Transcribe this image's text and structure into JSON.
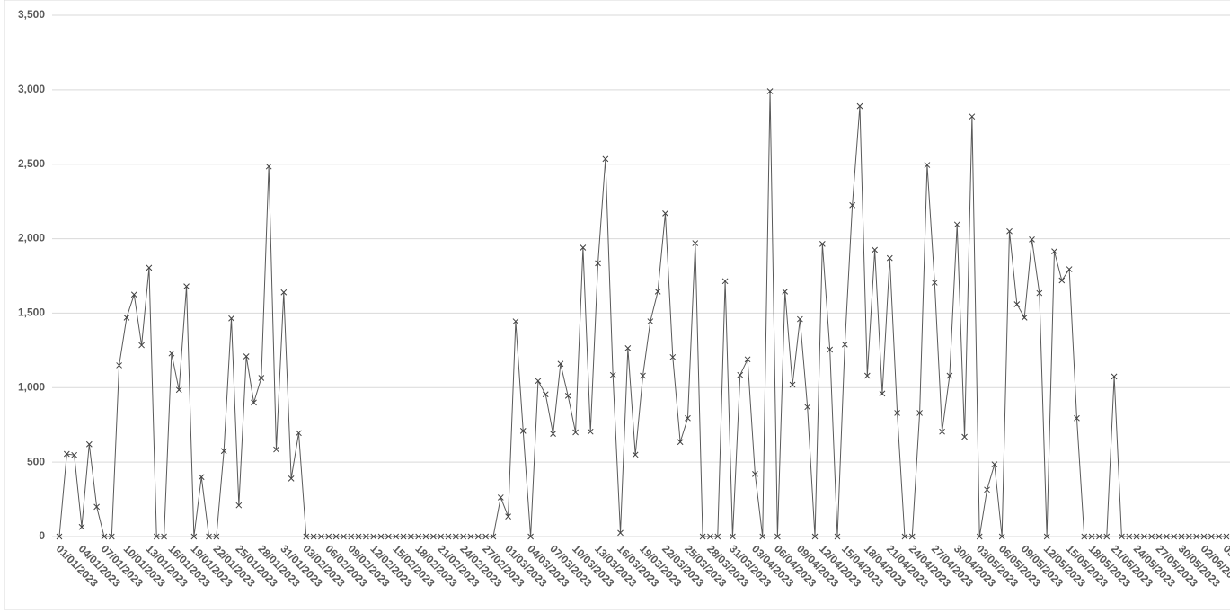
{
  "chart_data": {
    "type": "line",
    "categories": [
      "01/01/2023",
      null,
      null,
      "04/01/2023",
      null,
      null,
      "07/01/2023",
      null,
      null,
      "10/01/2023",
      null,
      null,
      "13/01/2023",
      null,
      null,
      "16/01/2023",
      null,
      null,
      "19/01/2023",
      null,
      null,
      "22/01/2023",
      null,
      null,
      "25/01/2023",
      null,
      null,
      "28/01/2023",
      null,
      null,
      "31/01/2023",
      null,
      null,
      "03/02/2023",
      null,
      null,
      "06/02/2023",
      null,
      null,
      "09/02/2023",
      null,
      null,
      "12/02/2023",
      null,
      null,
      "15/02/2023",
      null,
      null,
      "18/02/2023",
      null,
      null,
      "21/02/2023",
      null,
      null,
      "24/02/2023",
      null,
      null,
      "27/02/2023",
      null,
      null,
      "01/03/2023",
      null,
      null,
      "04/03/2023",
      null,
      null,
      "07/03/2023",
      null,
      null,
      "10/03/2023",
      null,
      null,
      "13/03/2023",
      null,
      null,
      "16/03/2023",
      null,
      null,
      "19/03/2023",
      null,
      null,
      "22/03/2023",
      null,
      null,
      "25/03/2023",
      null,
      null,
      "28/03/2023",
      null,
      null,
      "31/03/2023",
      null,
      null,
      "03/04/2023",
      null,
      null,
      "06/04/2023",
      null,
      null,
      "09/04/2023",
      null,
      null,
      "12/04/2023",
      null,
      null,
      "15/04/2023",
      null,
      null,
      "18/04/2023",
      null,
      null,
      "21/04/2023",
      null,
      null,
      "24/04/2023",
      null,
      null,
      "27/04/2023",
      null,
      null,
      "30/04/2023",
      null,
      null,
      "03/05/2023",
      null,
      null,
      "06/05/2023",
      null,
      null,
      "09/05/2023",
      null,
      null,
      "12/05/2023",
      null,
      null,
      "15/05/2023",
      null,
      null,
      "18/05/2023",
      null,
      null,
      "21/05/2023",
      null,
      null,
      "24/05/2023",
      null,
      null,
      "27/05/2023",
      null,
      null,
      "30/05/2023",
      null,
      null,
      "02/06/2023",
      null,
      null,
      "05/06/2023"
    ],
    "values": [
      0,
      555,
      548,
      65,
      620,
      200,
      0,
      0,
      1150,
      1470,
      1625,
      1285,
      1805,
      0,
      0,
      1230,
      985,
      1680,
      0,
      400,
      0,
      0,
      575,
      1465,
      210,
      1210,
      900,
      1065,
      2485,
      585,
      1640,
      390,
      695,
      0,
      0,
      0,
      0,
      0,
      0,
      0,
      0,
      0,
      0,
      0,
      0,
      0,
      0,
      0,
      0,
      0,
      0,
      0,
      0,
      0,
      0,
      0,
      0,
      0,
      0,
      263,
      135,
      1445,
      710,
      0,
      1045,
      955,
      690,
      1160,
      945,
      700,
      1940,
      705,
      1835,
      2535,
      1085,
      25,
      1265,
      550,
      1080,
      1445,
      1645,
      2170,
      1205,
      635,
      795,
      1970,
      0,
      0,
      0,
      1715,
      0,
      1085,
      1190,
      420,
      0,
      2990,
      0,
      1645,
      1020,
      1460,
      870,
      0,
      1965,
      1255,
      0,
      1290,
      2225,
      2890,
      1080,
      1925,
      960,
      1870,
      830,
      0,
      0,
      830,
      2495,
      1705,
      705,
      1080,
      2095,
      670,
      2820,
      0,
      315,
      485,
      0,
      2050,
      1560,
      1470,
      1995,
      1635,
      0,
      1915,
      1720,
      1795,
      795,
      0,
      0,
      0,
      0,
      1075,
      0,
      0,
      0,
      0,
      0,
      0,
      0,
      0,
      0,
      0,
      0,
      0,
      0,
      0,
      0
    ],
    "color": "#595959",
    "ylim": [
      0,
      3500
    ],
    "yticks": [
      0,
      500,
      {
        "value": 1000,
        "label": "1,000"
      },
      {
        "value": 1500,
        "label": "1,500"
      },
      {
        "value": 2000,
        "label": "2,000"
      },
      {
        "value": 2500,
        "label": "2,500"
      },
      {
        "value": 3000,
        "label": "3,000"
      },
      {
        "value": 3500,
        "label": "3,500"
      }
    ],
    "grid": true
  }
}
